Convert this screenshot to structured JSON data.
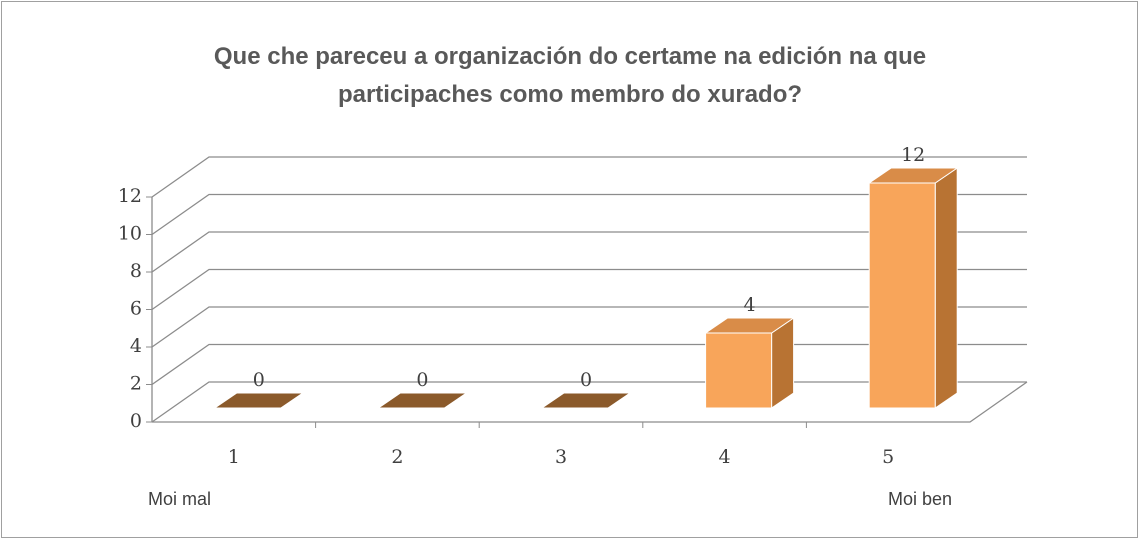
{
  "chart_data": {
    "type": "bar",
    "title": "Que che pareceu a organización do certame na edición na que participaches como membro do xurado?",
    "categories": [
      "1",
      "2",
      "3",
      "4",
      "5"
    ],
    "values": [
      0,
      0,
      0,
      4,
      12
    ],
    "color": "#f8a55a",
    "ylim": [
      0,
      12
    ],
    "yticks": [
      0,
      2,
      4,
      6,
      8,
      10,
      12
    ],
    "grid": true,
    "annotations": [
      "Moi mal",
      "Moi ben"
    ]
  }
}
